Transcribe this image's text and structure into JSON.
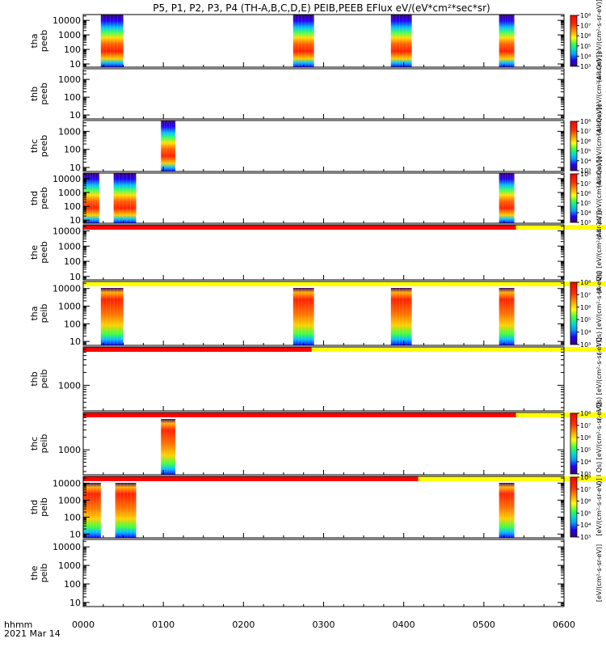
{
  "chart_data": {
    "type": "heatmap",
    "title": "P5, P1, P2, P3, P4 (TH-A,B,C,D,E) PEIB,PEEB EFlux eV/(eV*cm²*sec*sr)",
    "time_label": "hhmm",
    "date_label": "2021 Mar 14",
    "time_ticks": [
      "0000",
      "0100",
      "0200",
      "0300",
      "0400",
      "0500",
      "0600"
    ],
    "time_range_hours": [
      0,
      6
    ],
    "colorbar_ticks": [
      "10³",
      "10⁴",
      "10⁵",
      "10⁶",
      "10⁷",
      "10⁸"
    ],
    "colorbar_log_range": [
      3,
      8
    ],
    "panels": [
      {
        "probe": "tha",
        "product": "peeb",
        "y_ticks": [
          "10",
          "100",
          "1000",
          "10000"
        ],
        "y_range_log": [
          0.78,
          4.4
        ],
        "bursts": [
          [
            0.22,
            0.5
          ],
          [
            2.62,
            2.88
          ],
          [
            3.84,
            4.1
          ],
          [
            5.19,
            5.38
          ]
        ],
        "status_bar": null,
        "colorbar_label": "(All Qs) [eV/(cm²-s-sr-eV)]"
      },
      {
        "probe": "thb",
        "product": "peeb",
        "y_ticks": [
          "10",
          "100",
          "1000"
        ],
        "y_range_log": [
          0.78,
          3.6
        ],
        "bursts": [],
        "status_bar": null,
        "colorbar_label": "(All Qs) [eV/(cm²-s-sr-eV)]"
      },
      {
        "probe": "thc",
        "product": "peeb",
        "y_ticks": [
          "10",
          "100",
          "1000"
        ],
        "y_range_log": [
          0.78,
          3.6
        ],
        "bursts": [
          [
            0.97,
            1.15
          ]
        ],
        "status_bar": null,
        "colorbar_label": "(All Qs) [eV/(cm²-s-sr-eV)]"
      },
      {
        "probe": "thd",
        "product": "peeb",
        "y_ticks": [
          "10",
          "100",
          "1000",
          "10000"
        ],
        "y_range_log": [
          0.78,
          4.4
        ],
        "bursts": [
          [
            0.0,
            0.2
          ],
          [
            0.38,
            0.66
          ],
          [
            5.19,
            5.38
          ]
        ],
        "status_bar": null,
        "colorbar_label": "(All Qs) [eV/(cm²-s-sr-eV)]"
      },
      {
        "probe": "the",
        "product": "peeb",
        "y_ticks": [
          "10",
          "100",
          "1000",
          "10000"
        ],
        "y_range_log": [
          0.78,
          4.4
        ],
        "bursts": [],
        "status_bar": [
          5.4,
          6.0
        ],
        "colorbar_label": "(All Qs) [eV/(cm²-s-sr-eV)]"
      },
      {
        "probe": "tha",
        "product": "peib",
        "y_ticks": [
          "10",
          "100",
          "1000",
          "10000"
        ],
        "y_range_log": [
          0.78,
          4.4
        ],
        "bursts": [
          [
            0.22,
            0.5
          ],
          [
            2.62,
            2.88
          ],
          [
            3.84,
            4.1
          ],
          [
            5.19,
            5.38
          ]
        ],
        "status_bar": [
          0.0,
          0.0
        ],
        "colorbar_label": "(All Qs) [eV/(cm²-s-sr-eV)]"
      },
      {
        "probe": "thb",
        "product": "peib",
        "y_ticks": [
          "1000"
        ],
        "y_range_log": [
          2.4,
          3.9
        ],
        "bursts": [],
        "status_bar": [
          2.85,
          6.0
        ],
        "colorbar_label": "(All Qs) [eV/(cm²-s-sr-eV)]"
      },
      {
        "probe": "thc",
        "product": "peib",
        "y_ticks": [
          "1000"
        ],
        "y_range_log": [
          2.4,
          3.9
        ],
        "bursts": [
          [
            0.97,
            1.15
          ]
        ],
        "status_bar": [
          5.4,
          6.0
        ],
        "colorbar_label": "(All Qs) [eV/(cm²-s-sr-eV)]"
      },
      {
        "probe": "thd",
        "product": "peib",
        "y_ticks": [
          "10",
          "100",
          "1000",
          "10000"
        ],
        "y_range_log": [
          0.78,
          4.4
        ],
        "bursts": [
          [
            0.0,
            0.22
          ],
          [
            0.4,
            0.66
          ],
          [
            5.19,
            5.38
          ]
        ],
        "status_bar": [
          4.18,
          6.0
        ],
        "colorbar_label": "[eV/(cm²-s-sr-eV)]"
      },
      {
        "probe": "the",
        "product": "peib",
        "y_ticks": [
          "10",
          "100",
          "1000",
          "10000"
        ],
        "y_range_log": [
          0.78,
          4.4
        ],
        "bursts": [],
        "status_bar": null,
        "colorbar_label": "[eV/(cm²-s-sr-eV)]"
      }
    ],
    "colorbars_on_panels": [
      0,
      2,
      3,
      5,
      7,
      8
    ]
  }
}
